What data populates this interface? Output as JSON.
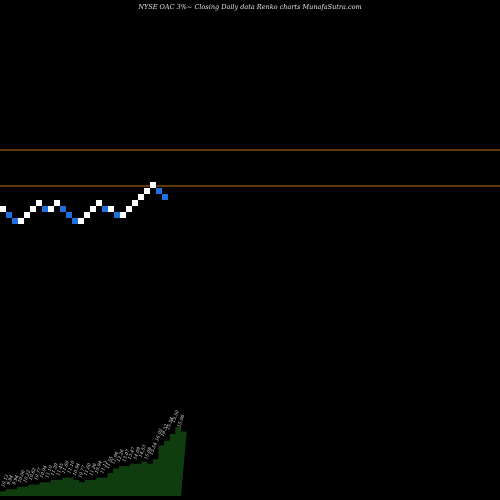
{
  "header": {
    "title": "NYSE OAC 3%~  Closing Daily data  Renko  charts MunafaSutra.com"
  },
  "colors": {
    "background": "#000000",
    "up_brick": "#ffffff",
    "down_brick": "#1e6fe0",
    "level_line": "#b8741a",
    "volume_fill": "#0f3d0f",
    "volume_label": "#e0e0e0"
  },
  "chart_data": {
    "type": "renko",
    "bricks": [
      {
        "dir": "up"
      },
      {
        "dir": "down"
      },
      {
        "dir": "down"
      },
      {
        "dir": "up"
      },
      {
        "dir": "up"
      },
      {
        "dir": "up"
      },
      {
        "dir": "up"
      },
      {
        "dir": "down"
      },
      {
        "dir": "up"
      },
      {
        "dir": "up"
      },
      {
        "dir": "down"
      },
      {
        "dir": "down"
      },
      {
        "dir": "down"
      },
      {
        "dir": "up"
      },
      {
        "dir": "up"
      },
      {
        "dir": "up"
      },
      {
        "dir": "up"
      },
      {
        "dir": "down"
      },
      {
        "dir": "up"
      },
      {
        "dir": "down"
      },
      {
        "dir": "up"
      },
      {
        "dir": "up"
      },
      {
        "dir": "up"
      },
      {
        "dir": "up"
      },
      {
        "dir": "up"
      },
      {
        "dir": "up"
      },
      {
        "dir": "down"
      },
      {
        "dir": "down"
      }
    ],
    "volume_labels": [
      "10.13",
      "9.94",
      "9.94",
      "10.06",
      "10.22",
      "10.62",
      "10.77",
      "10.94",
      "11.10",
      "11.29",
      "11.45",
      "11.60",
      "11.10",
      "10.94",
      "10.77",
      "11.60",
      "11.26",
      "10.94",
      "11.12",
      "11.55",
      "11.94",
      "12.26",
      "13.07",
      "13.47",
      "14.09",
      "14.53",
      "15.08",
      "15.54",
      "16.02",
      "16.32",
      "15.54",
      "15.50",
      "15.08"
    ],
    "volume_values": [
      2,
      3,
      3,
      4,
      4,
      5,
      5,
      6,
      6,
      7,
      7,
      8,
      8,
      7,
      6,
      7,
      7,
      8,
      8,
      10,
      12,
      13,
      13,
      14,
      14,
      15,
      14,
      16,
      22,
      24,
      27,
      30,
      28
    ],
    "grid": false
  }
}
